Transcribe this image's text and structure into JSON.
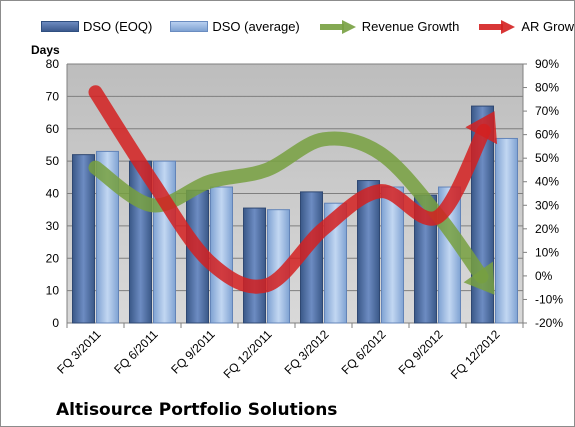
{
  "title": "Altisource Portfolio Solutions",
  "chart_data": {
    "type": "bar",
    "ylabel": "Days",
    "categories": [
      "FQ 3/2011",
      "FQ 6/2011",
      "FQ 9/2011",
      "FQ 12/2011",
      "FQ 3/2012",
      "FQ 6/2012",
      "FQ 9/2012",
      "FQ 12/2012"
    ],
    "ylim": [
      0,
      80
    ],
    "yticks": [
      "0",
      "10",
      "20",
      "30",
      "40",
      "50",
      "60",
      "70",
      "80"
    ],
    "y2lim": [
      -20,
      90
    ],
    "y2ticks": [
      "-20%",
      "-10%",
      "0%",
      "10%",
      "20%",
      "30%",
      "40%",
      "50%",
      "60%",
      "70%",
      "80%",
      "90%"
    ],
    "series": [
      {
        "name": "DSO (EOQ)",
        "type": "bar",
        "axis": "left",
        "color": "#4a6aa0",
        "values": [
          52,
          50,
          41,
          35.5,
          40.5,
          44,
          39.5,
          67
        ]
      },
      {
        "name": "DSO (average)",
        "type": "bar",
        "axis": "left",
        "color": "#95b6e0",
        "values": [
          53,
          50,
          42,
          35,
          37,
          42,
          42,
          57
        ]
      },
      {
        "name": "Revenue Growth",
        "type": "line",
        "axis": "right",
        "color": "#77a040",
        "values": [
          46,
          30,
          40,
          45,
          58,
          52,
          26,
          -8
        ]
      },
      {
        "name": "AR Growth",
        "type": "line",
        "axis": "right",
        "color": "#d42020",
        "values": [
          78,
          40,
          6,
          -4,
          20,
          36,
          25,
          70
        ]
      }
    ],
    "grid": true,
    "legend": "top"
  }
}
